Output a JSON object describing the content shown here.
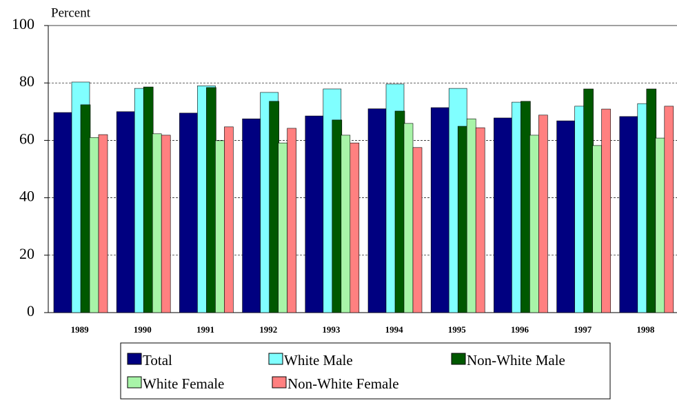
{
  "chart_data": {
    "type": "bar",
    "y_label": "Percent",
    "categories": [
      "1989",
      "1990",
      "1991",
      "1992",
      "1993",
      "1994",
      "1995",
      "1996",
      "1997",
      "1998"
    ],
    "series": [
      {
        "name": "Total",
        "color": "#000080",
        "values": [
          69.7,
          70,
          69.5,
          67.5,
          68.5,
          71,
          71.4,
          67.8,
          66.8,
          68.3
        ]
      },
      {
        "name": "White Male",
        "color": "#80ffff",
        "values": [
          80.3,
          78.1,
          79,
          76.7,
          77.9,
          79.6,
          78.1,
          73.3,
          71.9,
          72.8
        ]
      },
      {
        "name": "Non-White Male",
        "color": "#005800",
        "values": [
          72.4,
          78.6,
          78.4,
          73.6,
          67.1,
          70.2,
          64.9,
          73.6,
          77.9,
          77.9
        ]
      },
      {
        "name": "White Female",
        "color": "#a8f4a8",
        "values": [
          61,
          62.3,
          59.9,
          59.1,
          61.8,
          65.9,
          67.5,
          61.8,
          58.2,
          60.8
        ]
      },
      {
        "name": "Non-White Female",
        "color": "#ff8080",
        "values": [
          62,
          61.8,
          64.7,
          64.2,
          59.1,
          57.5,
          64.4,
          68.8,
          70.9,
          71.9
        ]
      }
    ],
    "ylim": [
      0,
      100
    ],
    "yticks": [
      0,
      20,
      40,
      60,
      80,
      100
    ],
    "grid": true
  }
}
